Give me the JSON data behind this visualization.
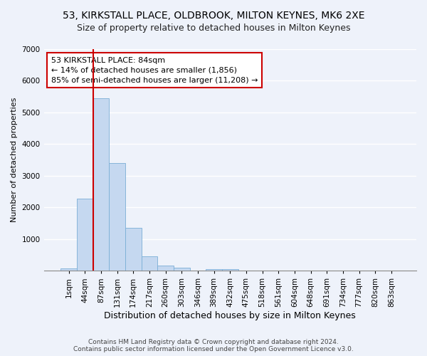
{
  "title1": "53, KIRKSTALL PLACE, OLDBROOK, MILTON KEYNES, MK6 2XE",
  "title2": "Size of property relative to detached houses in Milton Keynes",
  "xlabel": "Distribution of detached houses by size in Milton Keynes",
  "ylabel": "Number of detached properties",
  "categories": [
    "1sqm",
    "44sqm",
    "87sqm",
    "131sqm",
    "174sqm",
    "217sqm",
    "260sqm",
    "303sqm",
    "346sqm",
    "389sqm",
    "432sqm",
    "475sqm",
    "518sqm",
    "561sqm",
    "604sqm",
    "648sqm",
    "691sqm",
    "734sqm",
    "777sqm",
    "820sqm",
    "863sqm"
  ],
  "values": [
    65,
    2280,
    5450,
    3400,
    1350,
    450,
    175,
    100,
    0,
    60,
    50,
    0,
    0,
    0,
    0,
    0,
    0,
    0,
    0,
    0,
    0
  ],
  "bar_color": "#c5d8f0",
  "bar_edgecolor": "#7aaed6",
  "vline_color": "#cc0000",
  "vline_x_index": 2,
  "annotation_text": "53 KIRKSTALL PLACE: 84sqm\n← 14% of detached houses are smaller (1,856)\n85% of semi-detached houses are larger (11,208) →",
  "annotation_box_facecolor": "#ffffff",
  "annotation_box_edgecolor": "#cc0000",
  "ylim": [
    0,
    7000
  ],
  "yticks": [
    0,
    1000,
    2000,
    3000,
    4000,
    5000,
    6000,
    7000
  ],
  "footer": "Contains HM Land Registry data © Crown copyright and database right 2024.\nContains public sector information licensed under the Open Government Licence v3.0.",
  "bg_color": "#eef2fa",
  "grid_color": "#ffffff",
  "title1_fontsize": 10,
  "title2_fontsize": 9,
  "ylabel_fontsize": 8,
  "xlabel_fontsize": 9,
  "tick_fontsize": 7.5,
  "annotation_fontsize": 8,
  "footer_fontsize": 6.5
}
